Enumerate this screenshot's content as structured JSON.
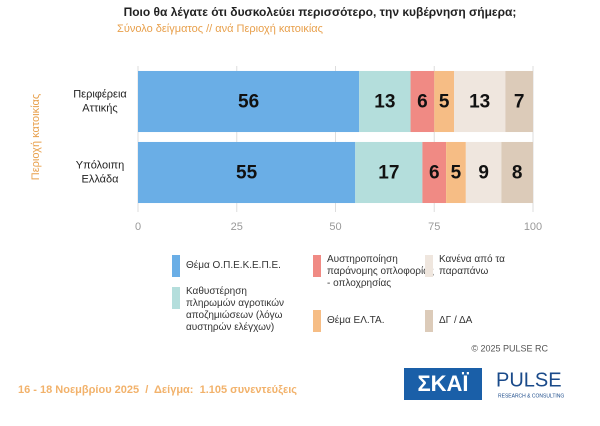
{
  "chart_data": {
    "type": "stacked-bar",
    "title": "Ποιο θα λέγατε ότι δυσκολεύει περισσότερο, την κυβέρνηση σήμερα;",
    "subtitle": "Σύνολο δείγματος // ανά Περιοχή κατοικίας",
    "y_label": "Περιοχή κατοικίας",
    "categories": [
      "Περιφέρεια Αττικής",
      "Υπόλοιπη Ελλάδα"
    ],
    "series": [
      {
        "name": "Θέμα Ο.Π.Ε.Κ.Ε.Π.Ε.",
        "color": "#6aaee6",
        "values": [
          56,
          55
        ]
      },
      {
        "name": "Καθυστέρηση πληρωμών αγροτικών αποζημιώσεων (λόγω αυστηρών ελέγχων)",
        "color": "#b4dedc",
        "values": [
          13,
          17
        ]
      },
      {
        "name": "Αυστηροποίηση παράνομης οπλοφορίας - οπλοχρησίας",
        "color": "#f08a84",
        "values": [
          6,
          6
        ]
      },
      {
        "name": "Θέμα ΕΛ.ΤΑ.",
        "color": "#f6bd85",
        "values": [
          5,
          5
        ]
      },
      {
        "name": "Κανένα από τα παραπάνω",
        "color": "#efe6de",
        "values": [
          13,
          9
        ]
      },
      {
        "name": "ΔΓ / ΔΑ",
        "color": "#dccbb9",
        "values": [
          7,
          8
        ]
      }
    ],
    "xlim": [
      0,
      100
    ],
    "xticks": [
      0,
      25,
      50,
      75,
      100
    ],
    "grid": true
  },
  "copyright": "© 2025 PULSE RC",
  "footer": "16 - 18 Νοεμβρίου 2025  /  Δείγμα:  1.105 συνεντεύξεις",
  "logos": [
    "ΣΚΑΪ",
    "PULSE",
    "RESEARCH & CONSULTING"
  ]
}
